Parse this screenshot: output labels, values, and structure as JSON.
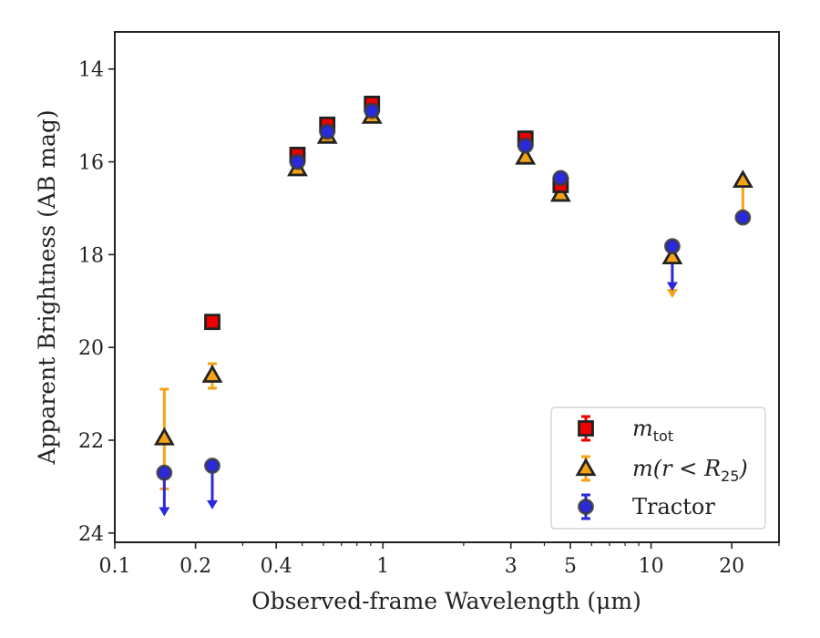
{
  "chart_data": {
    "type": "scatter",
    "xlabel": "Observed-frame Wavelength (μm)",
    "ylabel": "Apparent Brightness (AB mag)",
    "xscale": "log",
    "xlim": [
      0.1,
      30
    ],
    "ylim": [
      24.2,
      13.2
    ],
    "y_inverted": true,
    "x_major_ticks": [
      0.1,
      0.2,
      0.4,
      1,
      3,
      5,
      10,
      20
    ],
    "x_tick_labels": [
      "0.1",
      "0.2",
      "0.4",
      "1",
      "3",
      "5",
      "10",
      "20"
    ],
    "x_minor_ticks": [
      0.3,
      0.5,
      0.6,
      0.7,
      0.8,
      0.9,
      2,
      4,
      6,
      7,
      8,
      9,
      30
    ],
    "y_ticks": [
      14,
      16,
      18,
      20,
      22,
      24
    ],
    "y_tick_labels": [
      "14",
      "16",
      "18",
      "20",
      "22",
      "24"
    ],
    "grid": false,
    "legend_position": "lower-right",
    "series": [
      {
        "name": "m_tot",
        "legend_main": "m",
        "legend_sub": "tot",
        "marker": "square",
        "color": "#ee0000",
        "edge": "#222222",
        "points": [
          {
            "x": 0.231,
            "y": 19.45,
            "err": 0
          },
          {
            "x": 0.48,
            "y": 15.85,
            "err": 0.08
          },
          {
            "x": 0.62,
            "y": 15.2,
            "err": 0.08
          },
          {
            "x": 0.91,
            "y": 14.75,
            "err": 0.1
          },
          {
            "x": 3.4,
            "y": 15.5,
            "err": 0.08
          },
          {
            "x": 4.6,
            "y": 16.5,
            "err": 0.1
          }
        ]
      },
      {
        "name": "m(r<R25)",
        "legend_main": "m(r < R",
        "legend_sub": "25",
        "legend_close": ")",
        "marker": "triangle",
        "color": "#f5a316",
        "edge": "#222222",
        "points": [
          {
            "x": 0.153,
            "y": 21.95,
            "err_low": 1.05,
            "err_high": 1.1
          },
          {
            "x": 0.231,
            "y": 20.6,
            "err_low": 0.25,
            "err_high": 0.28
          },
          {
            "x": 0.48,
            "y": 16.15,
            "err": 0.05
          },
          {
            "x": 0.62,
            "y": 15.45,
            "err": 0.05
          },
          {
            "x": 0.91,
            "y": 15.02,
            "err": 0.05
          },
          {
            "x": 3.4,
            "y": 15.9,
            "err": 0.05
          },
          {
            "x": 4.6,
            "y": 16.7,
            "err": 0.05
          },
          {
            "x": 12,
            "y": 18.05,
            "upper_limit": true,
            "arrow_to": 18.9
          },
          {
            "x": 22,
            "y": 16.4,
            "err_low": 0,
            "err_high": 0.8
          }
        ]
      },
      {
        "name": "Tractor",
        "legend_main": "Tractor",
        "marker": "circle",
        "color": "#2a2adb",
        "edge": "#3a3a3a",
        "points": [
          {
            "x": 0.153,
            "y": 22.7,
            "upper_limit": true,
            "arrow_to": 23.6
          },
          {
            "x": 0.231,
            "y": 22.55,
            "upper_limit": true,
            "arrow_to": 23.45
          },
          {
            "x": 0.48,
            "y": 16.0,
            "err": 0.05
          },
          {
            "x": 0.62,
            "y": 15.35,
            "err": 0.05
          },
          {
            "x": 0.91,
            "y": 14.9,
            "err": 0.05
          },
          {
            "x": 3.4,
            "y": 15.65,
            "err": 0.05
          },
          {
            "x": 4.6,
            "y": 16.35,
            "err": 0.08
          },
          {
            "x": 12,
            "y": 17.82,
            "upper_limit": true,
            "arrow_to": 18.75
          },
          {
            "x": 22,
            "y": 17.2,
            "err": 0.05
          }
        ]
      }
    ]
  }
}
